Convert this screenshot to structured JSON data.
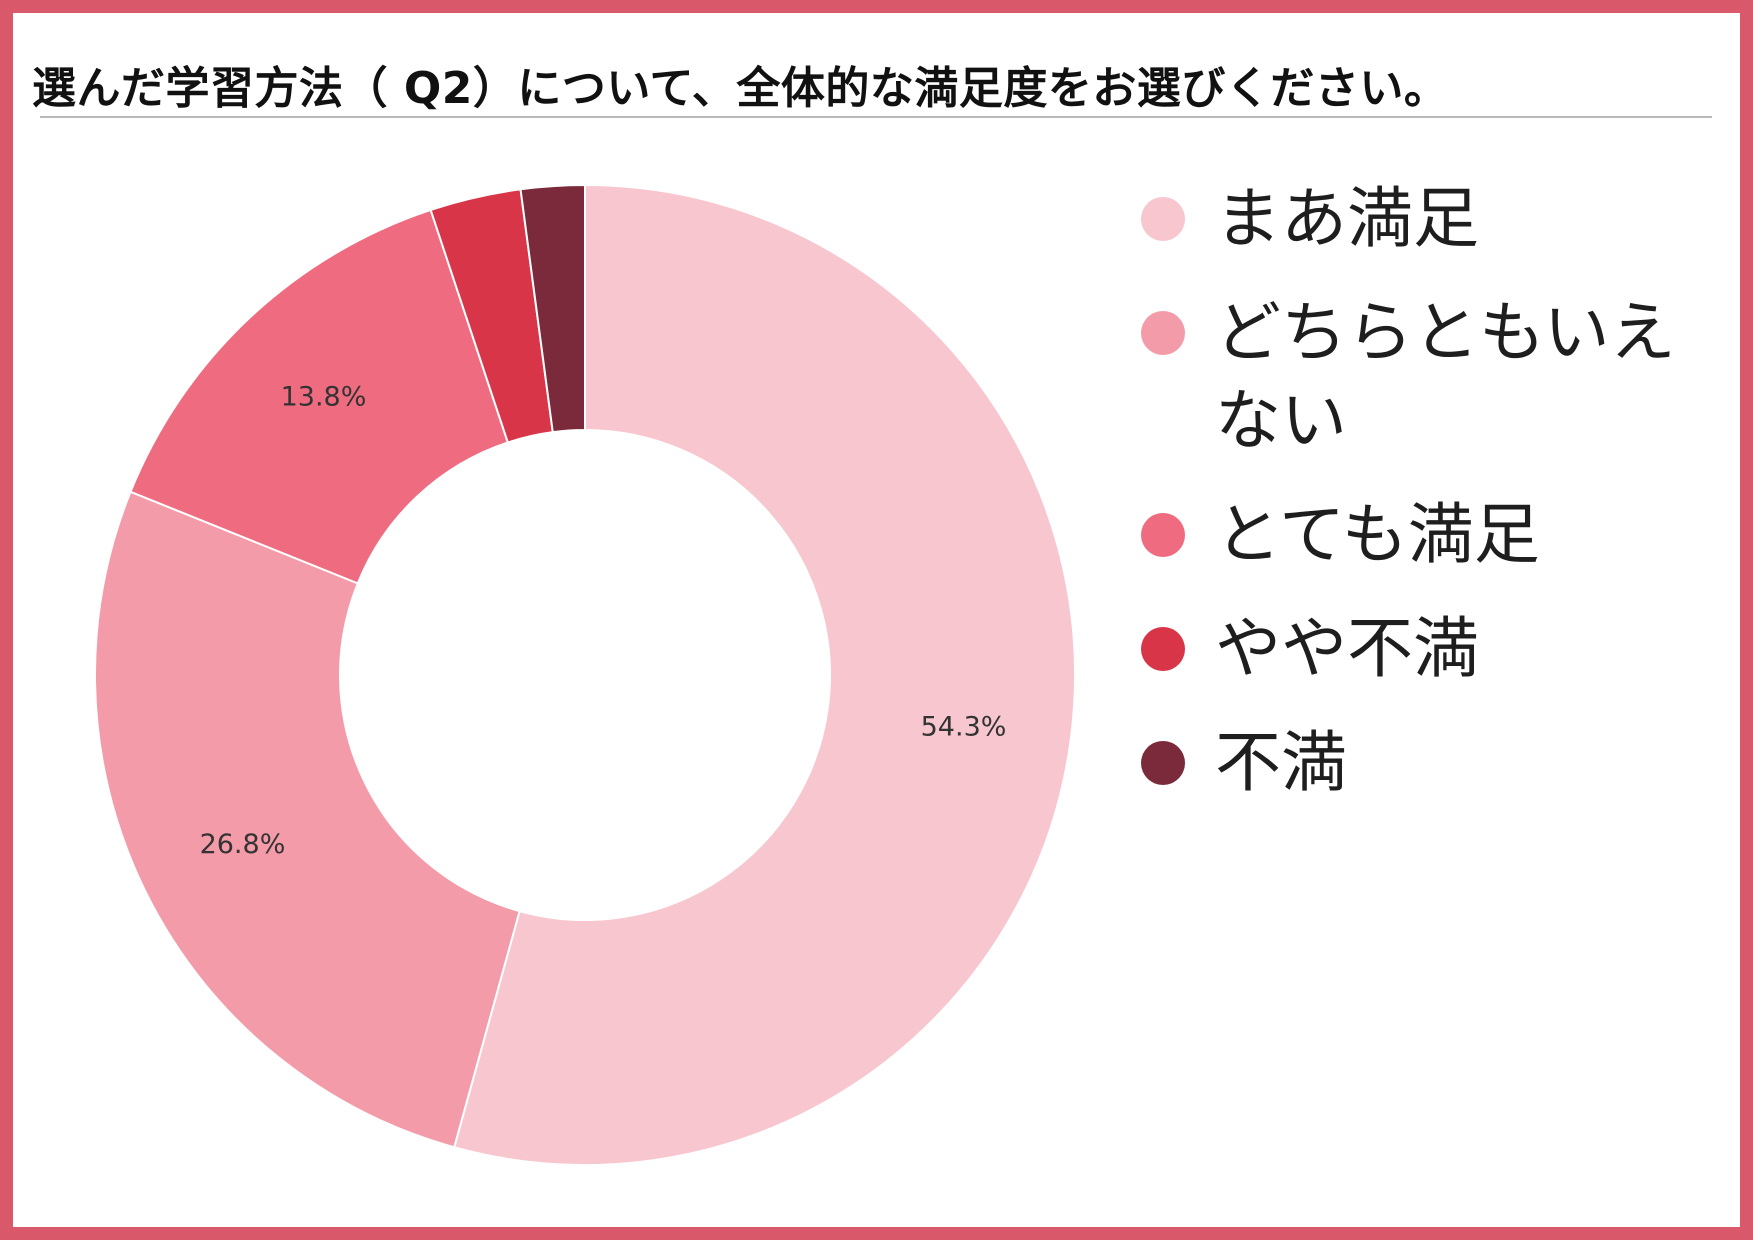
{
  "page": {
    "title": "選んだ学習方法（ Q2）について、全体的な満足度をお選びください。",
    "frame_color": "#d9596a"
  },
  "chart_data": {
    "type": "pie",
    "donut": true,
    "start_angle_deg": 0,
    "categories": [
      "まあ満足",
      "どちらともいえない",
      "とても満足",
      "やや不満",
      "不満"
    ],
    "values": [
      54.3,
      26.8,
      13.8,
      3.0,
      2.1
    ],
    "value_labels": [
      "54.3%",
      "26.8%",
      "13.8%",
      "",
      ""
    ],
    "colors": [
      "#f8c6cf",
      "#f49ba9",
      "#ee6b80",
      "#d93548",
      "#7a2a3a"
    ],
    "legend_position": "right"
  }
}
